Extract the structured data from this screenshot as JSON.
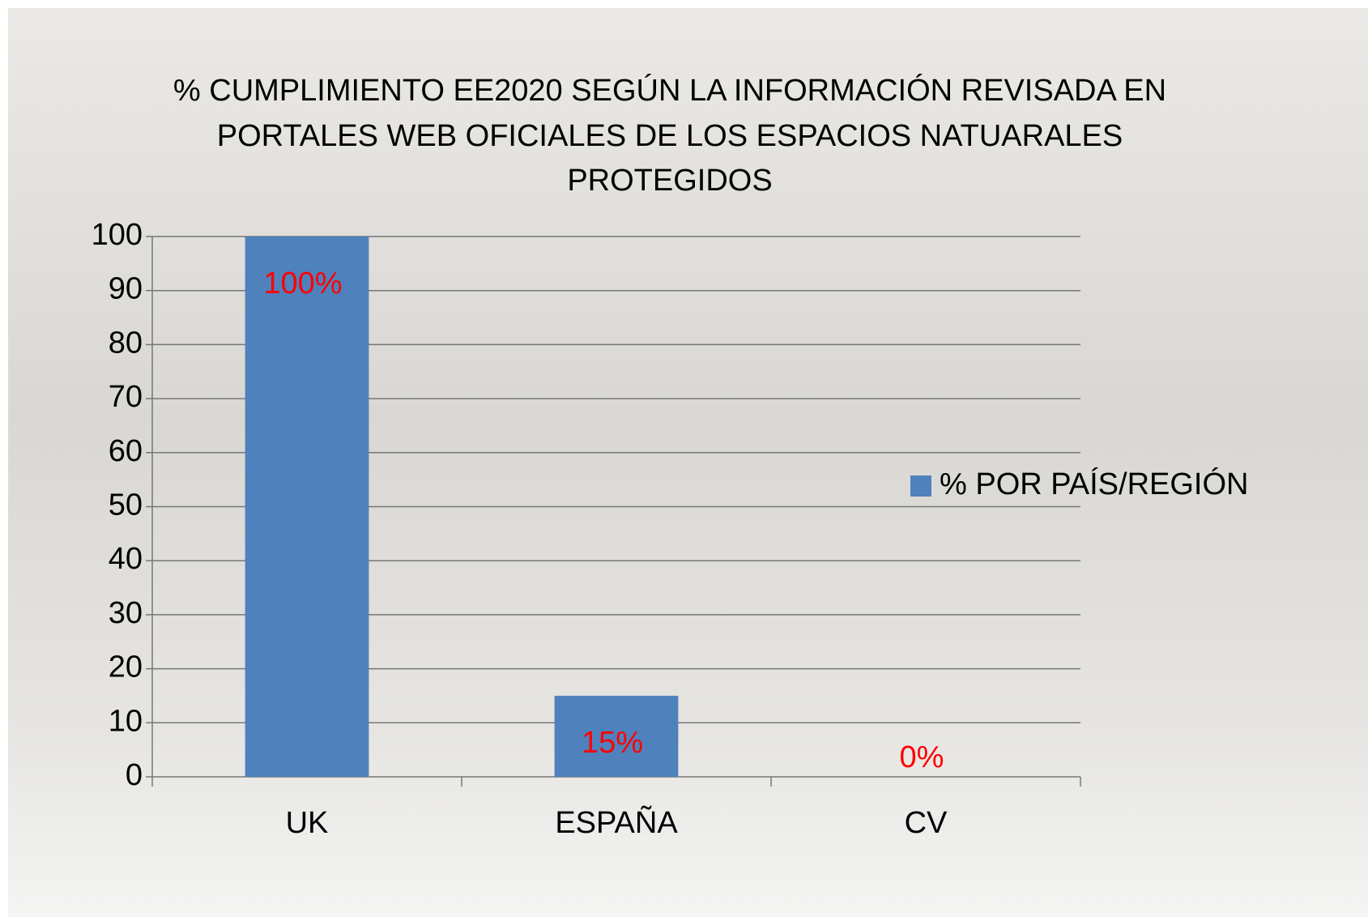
{
  "chart_data": {
    "type": "bar",
    "title": [
      "% CUMPLIMIENTO EE2020 SEGÚN LA INFORMACIÓN REVISADA EN",
      "PORTALES WEB OFICIALES  DE LOS ESPACIOS NATUARALES",
      "PROTEGIDOS"
    ],
    "categories": [
      "UK",
      "ESPAÑA",
      "CV"
    ],
    "series": [
      {
        "name": "% POR PAÍS/REGIÓN",
        "color": "#4f81bd",
        "values": [
          100,
          15,
          0
        ],
        "value_labels": [
          "100%",
          "15%",
          "0%"
        ]
      }
    ],
    "value_label_color": "#ff0000",
    "ylim": [
      0,
      100
    ],
    "yticks": [
      0,
      10,
      20,
      30,
      40,
      50,
      60,
      70,
      80,
      90,
      100
    ],
    "grid": true,
    "legend": "right"
  }
}
